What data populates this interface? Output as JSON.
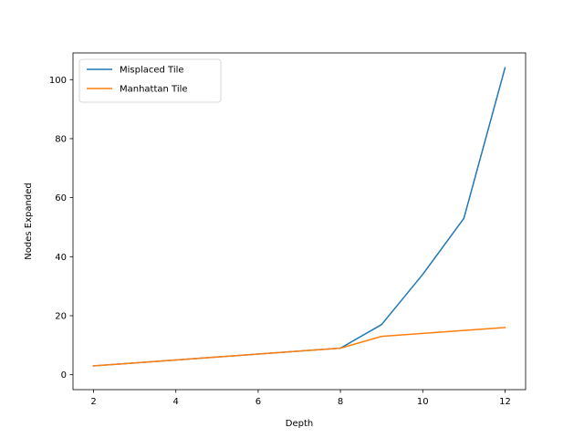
{
  "chart_data": {
    "type": "line",
    "title": "",
    "xlabel": "Depth",
    "ylabel": "Nodes Expanded",
    "xlim": [
      1.5,
      12.5
    ],
    "ylim": [
      -5.05,
      109.05
    ],
    "xticks": [
      2,
      4,
      6,
      8,
      10,
      12
    ],
    "yticks": [
      0,
      20,
      40,
      60,
      80,
      100
    ],
    "grid": false,
    "legend_position": "top-left",
    "series": [
      {
        "name": "Misplaced Tile",
        "color": "#1f77b4",
        "x": [
          2,
          3,
          4,
          5,
          6,
          7,
          8,
          9,
          10,
          11,
          12
        ],
        "y": [
          3,
          4,
          5,
          6,
          7,
          8,
          9,
          17,
          34,
          53,
          104
        ]
      },
      {
        "name": "Manhattan Tile",
        "color": "#ff7f0e",
        "x": [
          2,
          3,
          4,
          5,
          6,
          7,
          8,
          9,
          10,
          11,
          12
        ],
        "y": [
          3,
          4,
          5,
          6,
          7,
          8,
          9,
          13,
          14,
          15,
          16
        ]
      }
    ]
  }
}
